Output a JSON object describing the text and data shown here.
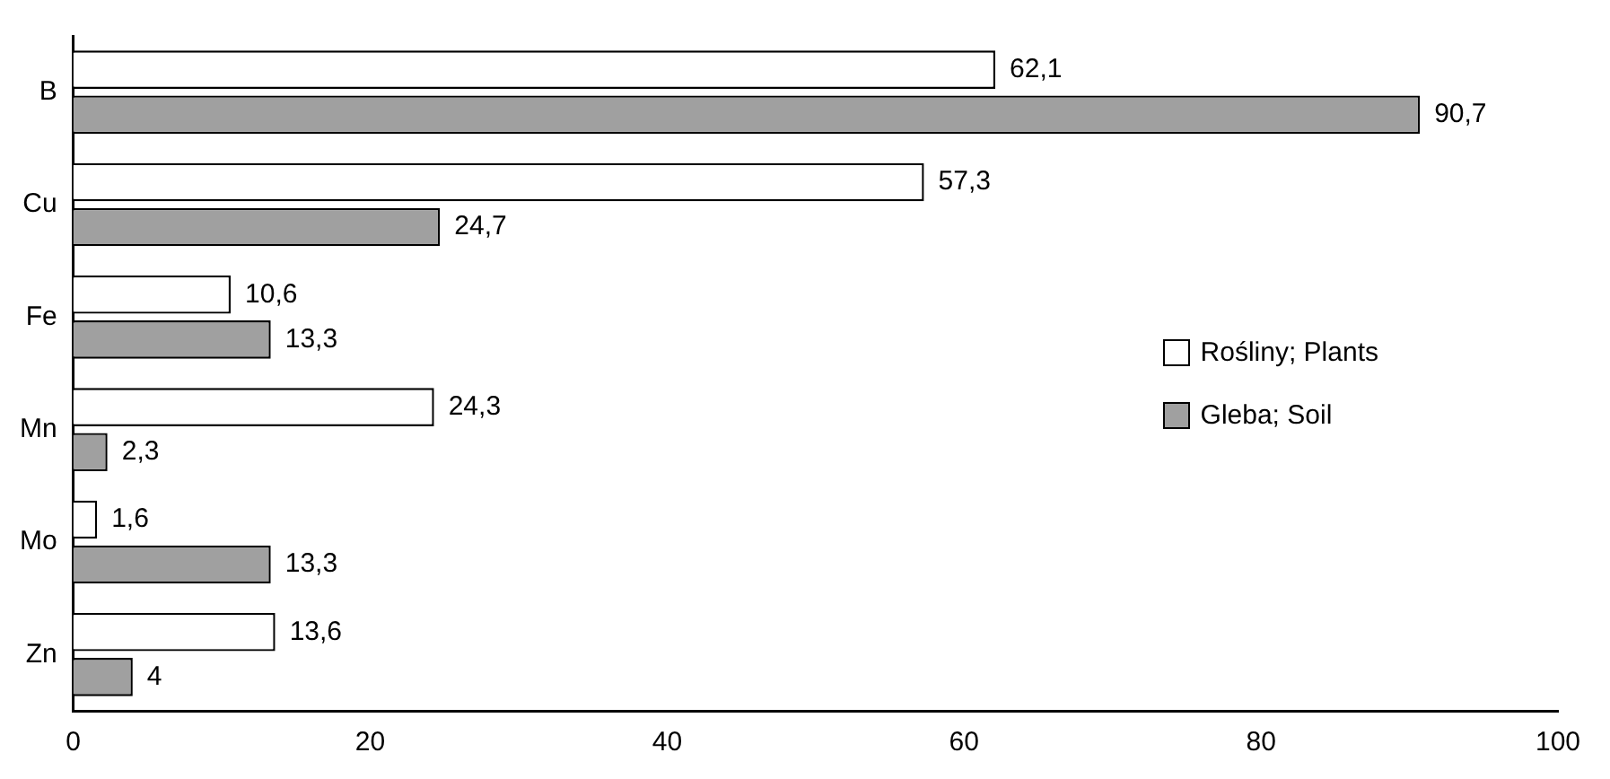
{
  "chart_data": {
    "type": "bar",
    "orientation": "horizontal",
    "categories": [
      "B",
      "Cu",
      "Fe",
      "Mn",
      "Mo",
      "Zn"
    ],
    "series": [
      {
        "name": "Rośliny; Plants",
        "color": "#ffffff",
        "values": [
          62.1,
          57.3,
          10.6,
          24.3,
          1.6,
          13.6
        ],
        "value_labels": [
          "62,1",
          "57,3",
          "10,6",
          "24,3",
          "1,6",
          "13,6"
        ]
      },
      {
        "name": "Gleba; Soil",
        "color": "#a0a0a0",
        "values": [
          90.7,
          24.7,
          13.3,
          2.3,
          13.3,
          4
        ],
        "value_labels": [
          "90,7",
          "24,7",
          "13,3",
          "2,3",
          "13,3",
          "4"
        ]
      }
    ],
    "xlim": [
      0,
      100
    ],
    "xticks": [
      0,
      20,
      40,
      60,
      80,
      100
    ],
    "grid": false,
    "legend": "right"
  }
}
